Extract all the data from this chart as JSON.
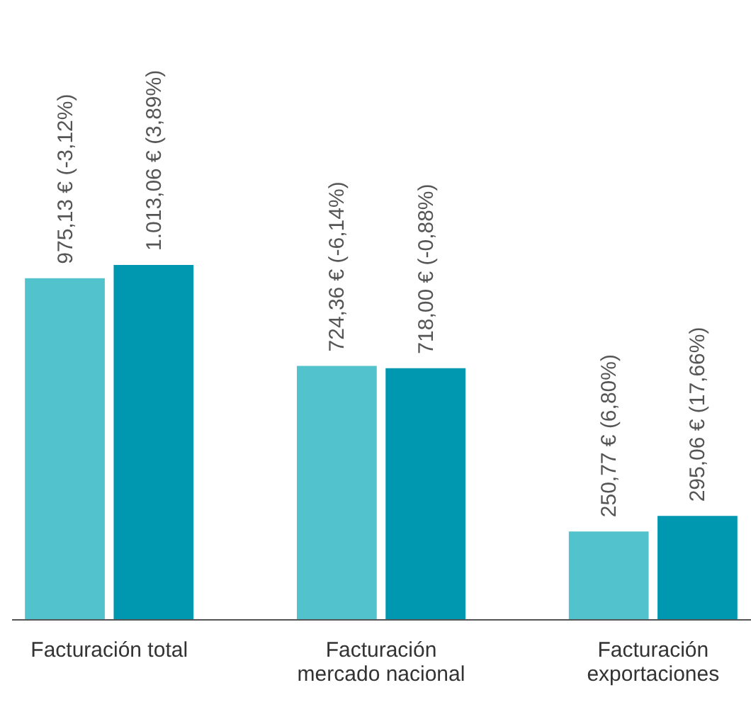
{
  "chart_data": {
    "type": "bar",
    "categories": [
      "Facturación total",
      "Facturación mercado nacional",
      "Facturación exportaciones"
    ],
    "series": [
      {
        "color": "#52c3cc",
        "values": [
          975.13,
          724.36,
          250.77
        ],
        "value_labels": [
          "975,13 € (-3,12%)",
          "724,36 € (-6,14%)",
          "250,77 € (6,80%)"
        ]
      },
      {
        "color": "#0097b0",
        "values": [
          1013.06,
          718.0,
          295.06
        ],
        "value_labels": [
          "1.013,06 € (3,89%)",
          "718,00 € (-0,88%)",
          "295,06 € (17,66%)"
        ]
      }
    ],
    "grid": false
  }
}
